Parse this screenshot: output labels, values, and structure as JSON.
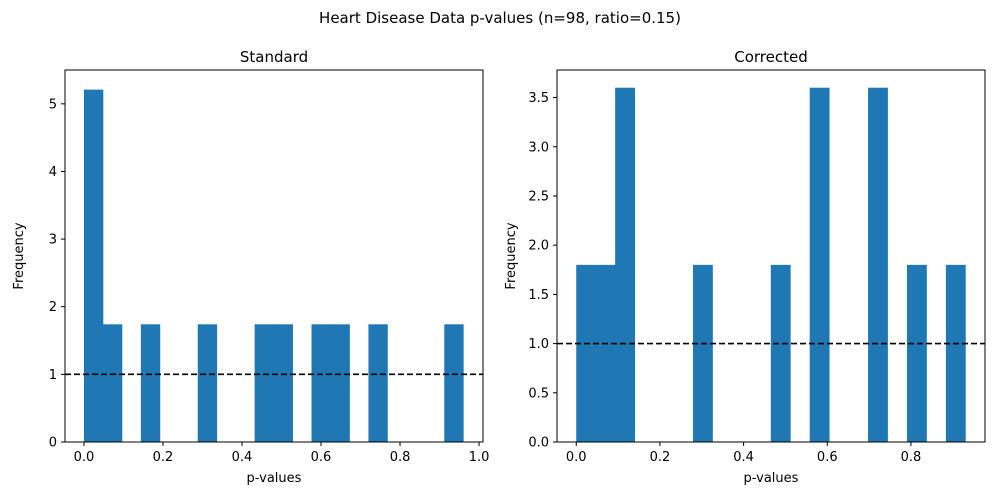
{
  "figure": {
    "suptitle": "Heart Disease Data p-values (n=98, ratio=0.15)"
  },
  "colors": {
    "bar": "#1f77b4",
    "reference_line": "#000000",
    "axes": "#000000",
    "background": "#ffffff"
  },
  "chart_data": [
    {
      "type": "bar",
      "title": "Standard",
      "xlabel": "p-values",
      "ylabel": "Frequency",
      "xlim": [
        -0.048,
        1.01
      ],
      "ylim": [
        0,
        5.5
      ],
      "xticks": [
        0.0,
        0.2,
        0.4,
        0.6,
        0.8,
        1.0
      ],
      "xtick_labels": [
        "0.0",
        "0.2",
        "0.4",
        "0.6",
        "0.8",
        "1.0"
      ],
      "yticks": [
        0,
        1,
        2,
        3,
        4,
        5
      ],
      "ytick_labels": [
        "0",
        "1",
        "2",
        "3",
        "4",
        "5"
      ],
      "bin_edges": [
        0.0,
        0.048,
        0.096,
        0.144,
        0.192,
        0.24,
        0.288,
        0.336,
        0.384,
        0.432,
        0.48,
        0.528,
        0.576,
        0.624,
        0.672,
        0.72,
        0.768,
        0.816,
        0.864,
        0.912,
        0.96
      ],
      "values": [
        5.21,
        1.74,
        0,
        1.74,
        0,
        0,
        1.74,
        0,
        0,
        1.74,
        1.74,
        0,
        1.74,
        1.74,
        0,
        1.74,
        0,
        0,
        0,
        1.74
      ],
      "reference_line": {
        "y": 1.0,
        "style": "dashed"
      },
      "grid": false,
      "legend": "none"
    },
    {
      "type": "bar",
      "title": "Corrected",
      "xlabel": "p-values",
      "ylabel": "Frequency",
      "xlim": [
        -0.046,
        0.977
      ],
      "ylim": [
        0,
        3.78
      ],
      "xticks": [
        0.0,
        0.2,
        0.4,
        0.6,
        0.8
      ],
      "xtick_labels": [
        "0.0",
        "0.2",
        "0.4",
        "0.6",
        "0.8"
      ],
      "yticks": [
        0.0,
        0.5,
        1.0,
        1.5,
        2.0,
        2.5,
        3.0,
        3.5
      ],
      "ytick_labels": [
        "0.0",
        "0.5",
        "1.0",
        "1.5",
        "2.0",
        "2.5",
        "3.0",
        "3.5"
      ],
      "bin_edges": [
        0.0,
        0.0465,
        0.093,
        0.1395,
        0.186,
        0.2325,
        0.279,
        0.3255,
        0.372,
        0.4185,
        0.465,
        0.5115,
        0.558,
        0.6045,
        0.651,
        0.6975,
        0.744,
        0.7905,
        0.837,
        0.8835,
        0.93
      ],
      "values": [
        1.8,
        1.8,
        3.6,
        0,
        0,
        0,
        1.8,
        0,
        0,
        0,
        1.8,
        0,
        3.6,
        0,
        0,
        3.6,
        0,
        1.8,
        0,
        1.8
      ],
      "reference_line": {
        "y": 1.0,
        "style": "dashed"
      },
      "grid": false,
      "legend": "none"
    }
  ]
}
